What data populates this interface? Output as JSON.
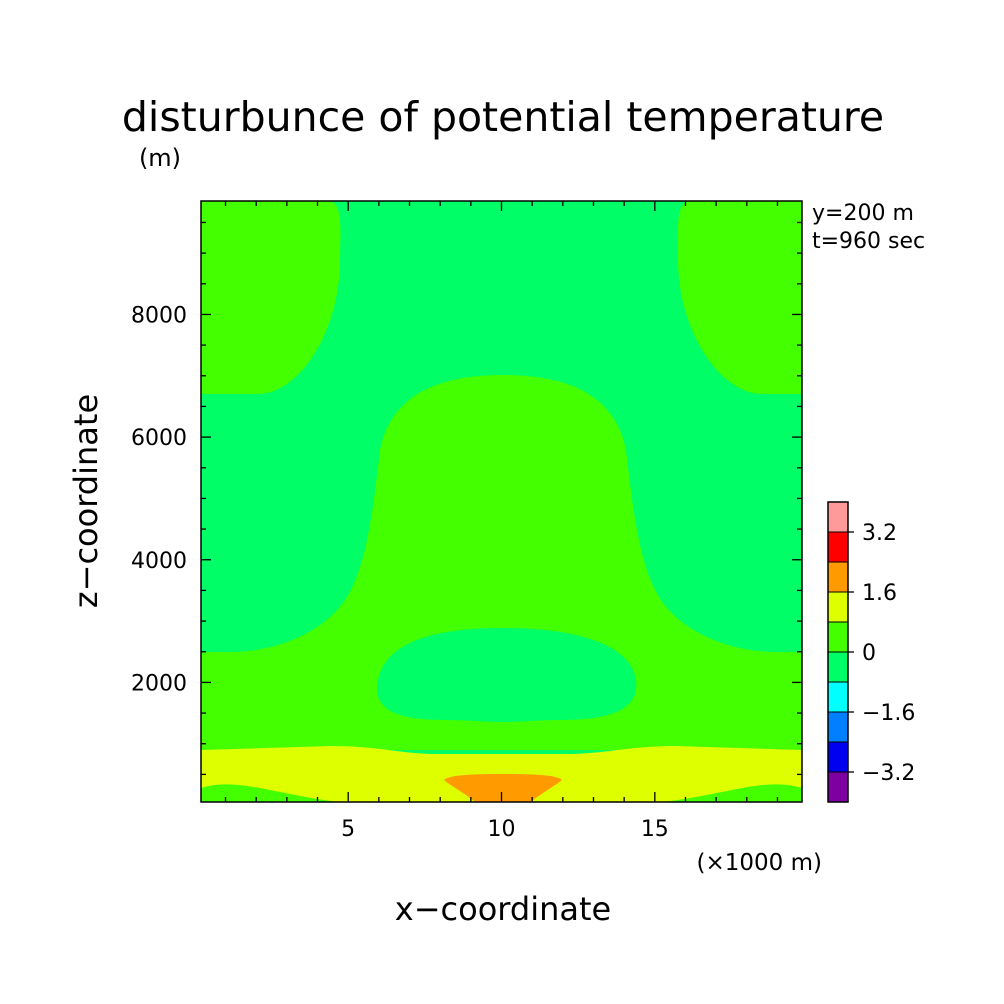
{
  "chart_data": {
    "type": "heatmap",
    "title": "disturbunce of potential temperature",
    "units_label": "(m)",
    "xlabel": "x−coordinate",
    "ylabel": "z−coordinate",
    "x_scale_note": "(×1000 m)",
    "annotations": [
      "y=200 m",
      "t=960 sec"
    ],
    "xlim": [
      0.2,
      19.8
    ],
    "ylim": [
      50,
      9850
    ],
    "x_ticks": [
      5,
      10,
      15
    ],
    "y_ticks": [
      2000,
      4000,
      6000,
      8000
    ],
    "x_tick_labels": [
      "5",
      "10",
      "15"
    ],
    "y_tick_labels": [
      "2000",
      "4000",
      "6000",
      "8000"
    ],
    "colorbar": {
      "levels": [
        -4.0,
        -3.2,
        -2.4,
        -1.6,
        -0.8,
        0.0,
        0.8,
        1.6,
        2.4,
        3.2,
        4.0
      ],
      "tick_labels": [
        "3.2",
        "1.6",
        "0",
        "−1.6",
        "−3.2"
      ],
      "tick_values": [
        3.2,
        1.6,
        0.0,
        -1.6,
        -3.2
      ],
      "colors": [
        "#7f00a0",
        "#0000f0",
        "#0080ff",
        "#00ffff",
        "#00ff66",
        "#44ff00",
        "#ddff00",
        "#ff9a00",
        "#ff0000",
        "#ff9a9a"
      ]
    },
    "regions": [
      {
        "name": "background",
        "range": [
          -0.8,
          0.0
        ],
        "color": "#00ff66"
      },
      {
        "name": "upper-left-positive",
        "range": [
          0.0,
          0.8
        ],
        "color": "#44ff00"
      },
      {
        "name": "upper-right-positive",
        "range": [
          0.0,
          0.8
        ],
        "color": "#44ff00"
      },
      {
        "name": "central-positive-dome",
        "range": [
          0.0,
          0.8
        ],
        "color": "#44ff00"
      },
      {
        "name": "inner-negative-blob",
        "range": [
          -0.8,
          0.0
        ],
        "color": "#00ff66"
      },
      {
        "name": "surface-warm-layer",
        "range": [
          0.8,
          1.6
        ],
        "color": "#ddff00"
      },
      {
        "name": "bottom-left-strip",
        "range": [
          0.0,
          0.8
        ],
        "color": "#44ff00"
      },
      {
        "name": "bottom-right-strip",
        "range": [
          0.0,
          0.8
        ],
        "color": "#44ff00"
      },
      {
        "name": "surface-hot-core",
        "range": [
          1.6,
          2.4
        ],
        "color": "#ff9a00"
      }
    ],
    "grid": false,
    "legend": "right"
  }
}
